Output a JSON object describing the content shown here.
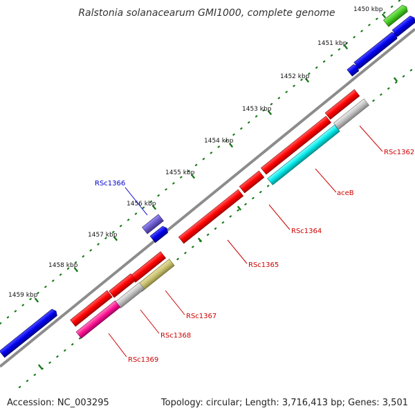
{
  "title": "Ralstonia solanacearum GMI1000, complete genome",
  "footer": {
    "accession": "Accession: NC_003295",
    "summary": "Topology: circular; Length: 3,716,413 bp; Genes: 3,501"
  },
  "ticks": [
    "1450 kbp",
    "1451 kbp",
    "1452 kbp",
    "1453 kbp",
    "1454 kbp",
    "1455 kbp",
    "1456 kbp",
    "1457 kbp",
    "1458 kbp",
    "1459 kbp"
  ],
  "gene_labels": {
    "rsc1362": "RSc1362",
    "aceb": "aceB",
    "rsc1364": "RSc1364",
    "rsc1365": "RSc1365",
    "rsc1366": "RSc1366",
    "rsc1367": "RSc1367",
    "rsc1368": "RSc1368",
    "rsc1369": "RSc1369"
  },
  "colors": {
    "red": "#ff0000",
    "blue": "#0000ee",
    "green": "#44cc22",
    "cyan": "#00e6e6",
    "gray": "#c0c0c0",
    "olive": "#c8c070",
    "magenta": "#ff1493",
    "purple": "#6a5acd",
    "backbone": "#808080",
    "tick": "#1a7a1a",
    "label_red": "#cc0000",
    "label_blue": "#0000cc"
  }
}
